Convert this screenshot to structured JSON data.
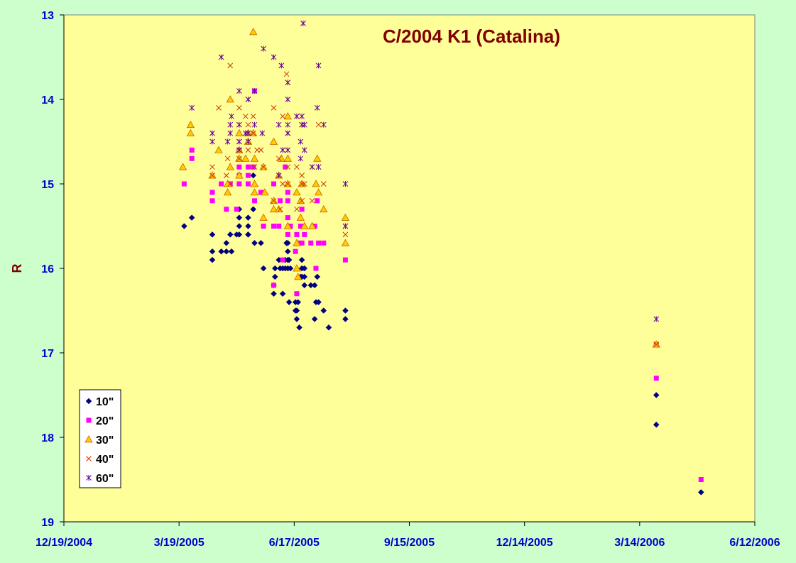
{
  "chart_data": {
    "type": "scatter",
    "title": "C/2004 K1 (Catalina)",
    "xlabel": "",
    "ylabel": "R",
    "x_type": "date",
    "xlim": [
      "12/19/2004",
      "6/12/2006"
    ],
    "x_ticks": [
      "12/19/2004",
      "3/19/2005",
      "6/17/2005",
      "9/15/2005",
      "12/14/2005",
      "3/14/2006",
      "6/12/2006"
    ],
    "ylim": [
      13,
      19
    ],
    "y_reversed": true,
    "y_ticks": [
      "13",
      "14",
      "15",
      "16",
      "17",
      "18",
      "19"
    ],
    "grid": false,
    "legend_position": "bottom-left",
    "plot_background": "#ffff99",
    "page_background": "#ccffcc",
    "series": [
      {
        "name": "10\"",
        "marker": "diamond",
        "color": "#000080",
        "points": [
          [
            "3/23/2005",
            15.5
          ],
          [
            "3/29/2005",
            15.4
          ],
          [
            "4/14/2005",
            15.6
          ],
          [
            "4/14/2005",
            15.8
          ],
          [
            "4/14/2005",
            15.9
          ],
          [
            "4/21/2005",
            15.8
          ],
          [
            "4/25/2005",
            15.7
          ],
          [
            "4/25/2005",
            15.8
          ],
          [
            "4/28/2005",
            15.6
          ],
          [
            "4/29/2005",
            15.8
          ],
          [
            "5/3/2005",
            15.6
          ],
          [
            "5/5/2005",
            15.4
          ],
          [
            "5/5/2005",
            15.5
          ],
          [
            "5/5/2005",
            15.6
          ],
          [
            "5/5/2005",
            15.3
          ],
          [
            "5/12/2005",
            15.4
          ],
          [
            "5/12/2005",
            15.5
          ],
          [
            "5/12/2005",
            15.6
          ],
          [
            "5/12/2005",
            15.6
          ],
          [
            "5/16/2005",
            15.3
          ],
          [
            "5/16/2005",
            14.9
          ],
          [
            "5/17/2005",
            15.7
          ],
          [
            "5/22/2005",
            15.7
          ],
          [
            "5/24/2005",
            16.0
          ],
          [
            "6/1/2005",
            16.2
          ],
          [
            "6/1/2005",
            16.3
          ],
          [
            "6/2/2005",
            16.1
          ],
          [
            "6/2/2005",
            16.0
          ],
          [
            "6/5/2005",
            15.9
          ],
          [
            "6/6/2005",
            16.0
          ],
          [
            "6/8/2005",
            16.0
          ],
          [
            "6/8/2005",
            16.3
          ],
          [
            "6/10/2005",
            15.9
          ],
          [
            "6/10/2005",
            16.0
          ],
          [
            "6/11/2005",
            15.7
          ],
          [
            "6/12/2005",
            15.7
          ],
          [
            "6/12/2005",
            15.8
          ],
          [
            "6/12/2005",
            15.9
          ],
          [
            "6/12/2005",
            16.0
          ],
          [
            "6/13/2005",
            16.4
          ],
          [
            "6/13/2005",
            15.9
          ],
          [
            "6/14/2005",
            16.0
          ],
          [
            "6/18/2005",
            16.4
          ],
          [
            "6/18/2005",
            16.5
          ],
          [
            "6/19/2005",
            16.5
          ],
          [
            "6/19/2005",
            16.6
          ],
          [
            "6/20/2005",
            16.4
          ],
          [
            "6/21/2005",
            16.7
          ],
          [
            "6/22/2005",
            16.1
          ],
          [
            "6/23/2005",
            16.0
          ],
          [
            "6/23/2005",
            15.9
          ],
          [
            "6/23/2005",
            16.1
          ],
          [
            "6/25/2005",
            16.2
          ],
          [
            "6/25/2005",
            16.0
          ],
          [
            "6/25/2005",
            16.1
          ],
          [
            "6/30/2005",
            16.2
          ],
          [
            "7/3/2005",
            16.6
          ],
          [
            "7/3/2005",
            16.2
          ],
          [
            "7/4/2005",
            16.4
          ],
          [
            "7/5/2005",
            16.1
          ],
          [
            "7/6/2005",
            16.4
          ],
          [
            "7/10/2005",
            16.5
          ],
          [
            "7/14/2005",
            16.7
          ],
          [
            "7/27/2005",
            16.5
          ],
          [
            "7/27/2005",
            16.6
          ],
          [
            "3/27/2006",
            17.5
          ],
          [
            "3/27/2006",
            17.85
          ],
          [
            "5/1/2006",
            18.65
          ]
        ]
      },
      {
        "name": "20\"",
        "marker": "square",
        "color": "#ff00ff",
        "points": [
          [
            "3/23/2005",
            15.0
          ],
          [
            "3/29/2005",
            14.6
          ],
          [
            "3/29/2005",
            14.7
          ],
          [
            "4/14/2005",
            15.1
          ],
          [
            "4/14/2005",
            15.2
          ],
          [
            "4/21/2005",
            15.0
          ],
          [
            "4/25/2005",
            15.3
          ],
          [
            "4/28/2005",
            15.0
          ],
          [
            "5/3/2005",
            15.3
          ],
          [
            "5/5/2005",
            14.6
          ],
          [
            "5/5/2005",
            14.9
          ],
          [
            "5/5/2005",
            15.0
          ],
          [
            "5/5/2005",
            14.8
          ],
          [
            "5/12/2005",
            14.8
          ],
          [
            "5/12/2005",
            14.9
          ],
          [
            "5/12/2005",
            15.0
          ],
          [
            "5/16/2005",
            14.8
          ],
          [
            "5/17/2005",
            13.9
          ],
          [
            "5/17/2005",
            15.2
          ],
          [
            "5/22/2005",
            15.1
          ],
          [
            "5/24/2005",
            15.5
          ],
          [
            "6/1/2005",
            15.0
          ],
          [
            "6/1/2005",
            15.5
          ],
          [
            "6/1/2005",
            16.2
          ],
          [
            "6/5/2005",
            15.5
          ],
          [
            "6/6/2005",
            15.2
          ],
          [
            "6/8/2005",
            15.9
          ],
          [
            "6/10/2005",
            14.8
          ],
          [
            "6/12/2005",
            15.1
          ],
          [
            "6/12/2005",
            15.2
          ],
          [
            "6/12/2005",
            15.4
          ],
          [
            "6/12/2005",
            15.6
          ],
          [
            "6/14/2005",
            15.5
          ],
          [
            "6/18/2005",
            15.8
          ],
          [
            "6/19/2005",
            16.3
          ],
          [
            "6/19/2005",
            15.6
          ],
          [
            "6/20/2005",
            15.7
          ],
          [
            "6/22/2005",
            15.5
          ],
          [
            "6/23/2005",
            15.7
          ],
          [
            "6/23/2005",
            15.3
          ],
          [
            "6/25/2005",
            15.6
          ],
          [
            "6/30/2005",
            15.7
          ],
          [
            "7/3/2005",
            15.5
          ],
          [
            "7/4/2005",
            16.0
          ],
          [
            "7/5/2005",
            15.2
          ],
          [
            "7/6/2005",
            15.7
          ],
          [
            "7/10/2005",
            15.7
          ],
          [
            "7/27/2005",
            15.9
          ],
          [
            "3/27/2006",
            16.9
          ],
          [
            "3/27/2006",
            17.3
          ],
          [
            "5/1/2006",
            18.5
          ]
        ]
      },
      {
        "name": "30\"",
        "marker": "triangle",
        "color": "#ffcc00",
        "points": [
          [
            "3/22/2005",
            14.8
          ],
          [
            "3/28/2005",
            14.3
          ],
          [
            "3/28/2005",
            14.4
          ],
          [
            "4/14/2005",
            14.9
          ],
          [
            "4/19/2005",
            14.6
          ],
          [
            "4/26/2005",
            15.0
          ],
          [
            "4/26/2005",
            15.1
          ],
          [
            "4/28/2005",
            14.0
          ],
          [
            "4/28/2005",
            14.8
          ],
          [
            "5/5/2005",
            14.4
          ],
          [
            "5/5/2005",
            14.6
          ],
          [
            "5/5/2005",
            14.7
          ],
          [
            "5/5/2005",
            14.9
          ],
          [
            "5/10/2005",
            14.7
          ],
          [
            "5/12/2005",
            14.4
          ],
          [
            "5/12/2005",
            14.5
          ],
          [
            "5/16/2005",
            13.2
          ],
          [
            "5/16/2005",
            14.4
          ],
          [
            "5/17/2005",
            14.7
          ],
          [
            "5/17/2005",
            15.0
          ],
          [
            "5/17/2005",
            15.1
          ],
          [
            "5/24/2005",
            14.8
          ],
          [
            "5/24/2005",
            15.4
          ],
          [
            "5/25/2005",
            15.1
          ],
          [
            "6/1/2005",
            14.5
          ],
          [
            "6/1/2005",
            15.2
          ],
          [
            "6/1/2005",
            15.3
          ],
          [
            "6/5/2005",
            14.9
          ],
          [
            "6/5/2005",
            15.3
          ],
          [
            "6/7/2005",
            14.7
          ],
          [
            "6/12/2005",
            14.2
          ],
          [
            "6/12/2005",
            15.0
          ],
          [
            "6/12/2005",
            14.7
          ],
          [
            "6/12/2005",
            15.5
          ],
          [
            "6/19/2005",
            15.1
          ],
          [
            "6/19/2005",
            15.7
          ],
          [
            "6/19/2005",
            16.0
          ],
          [
            "6/20/2005",
            16.1
          ],
          [
            "6/22/2005",
            15.2
          ],
          [
            "6/22/2005",
            15.4
          ],
          [
            "6/23/2005",
            15.0
          ],
          [
            "6/25/2005",
            15.5
          ],
          [
            "7/1/2005",
            15.5
          ],
          [
            "7/4/2005",
            15.0
          ],
          [
            "7/5/2005",
            14.7
          ],
          [
            "7/6/2005",
            15.1
          ],
          [
            "7/10/2005",
            15.3
          ],
          [
            "7/27/2005",
            15.4
          ],
          [
            "7/27/2005",
            15.7
          ],
          [
            "3/27/2006",
            16.9
          ]
        ]
      },
      {
        "name": "40\"",
        "marker": "x",
        "color": "#cc3300",
        "points": [
          [
            "4/14/2005",
            14.8
          ],
          [
            "4/14/2005",
            14.9
          ],
          [
            "4/19/2005",
            14.1
          ],
          [
            "4/25/2005",
            14.9
          ],
          [
            "4/26/2005",
            14.7
          ],
          [
            "4/28/2005",
            13.6
          ],
          [
            "4/28/2005",
            15.0
          ],
          [
            "5/5/2005",
            14.1
          ],
          [
            "5/5/2005",
            14.3
          ],
          [
            "5/5/2005",
            14.5
          ],
          [
            "5/5/2005",
            14.7
          ],
          [
            "5/10/2005",
            14.2
          ],
          [
            "5/12/2005",
            14.0
          ],
          [
            "5/12/2005",
            14.3
          ],
          [
            "5/12/2005",
            14.6
          ],
          [
            "5/16/2005",
            14.4
          ],
          [
            "5/16/2005",
            14.2
          ],
          [
            "5/17/2005",
            14.8
          ],
          [
            "5/19/2005",
            14.6
          ],
          [
            "5/22/2005",
            14.6
          ],
          [
            "5/24/2005",
            14.8
          ],
          [
            "6/1/2005",
            14.1
          ],
          [
            "6/1/2005",
            15.2
          ],
          [
            "6/5/2005",
            14.7
          ],
          [
            "6/6/2005",
            15.3
          ],
          [
            "6/8/2005",
            14.2
          ],
          [
            "6/8/2005",
            15.0
          ],
          [
            "6/11/2005",
            13.7
          ],
          [
            "6/12/2005",
            13.8
          ],
          [
            "6/12/2005",
            14.4
          ],
          [
            "6/12/2005",
            14.8
          ],
          [
            "6/12/2005",
            15.0
          ],
          [
            "6/19/2005",
            14.2
          ],
          [
            "6/19/2005",
            14.8
          ],
          [
            "6/19/2005",
            15.3
          ],
          [
            "6/23/2005",
            14.3
          ],
          [
            "6/23/2005",
            14.9
          ],
          [
            "6/23/2005",
            15.0
          ],
          [
            "6/23/2005",
            15.2
          ],
          [
            "6/25/2005",
            15.0
          ],
          [
            "6/25/2005",
            14.3
          ],
          [
            "7/1/2005",
            14.8
          ],
          [
            "7/1/2005",
            15.2
          ],
          [
            "7/6/2005",
            14.8
          ],
          [
            "7/6/2005",
            14.3
          ],
          [
            "7/10/2005",
            15.0
          ],
          [
            "7/27/2005",
            15.5
          ],
          [
            "7/27/2005",
            15.6
          ],
          [
            "3/27/2006",
            16.9
          ]
        ]
      },
      {
        "name": "60\"",
        "marker": "star",
        "color": "#660099",
        "points": [
          [
            "3/29/2005",
            14.1
          ],
          [
            "4/14/2005",
            14.4
          ],
          [
            "4/14/2005",
            14.5
          ],
          [
            "4/21/2005",
            13.5
          ],
          [
            "4/26/2005",
            14.5
          ],
          [
            "4/28/2005",
            14.4
          ],
          [
            "4/28/2005",
            14.3
          ],
          [
            "4/29/2005",
            14.2
          ],
          [
            "5/5/2005",
            13.9
          ],
          [
            "5/5/2005",
            14.3
          ],
          [
            "5/5/2005",
            14.5
          ],
          [
            "5/5/2005",
            14.6
          ],
          [
            "5/10/2005",
            14.4
          ],
          [
            "5/12/2005",
            14.0
          ],
          [
            "5/12/2005",
            14.4
          ],
          [
            "5/12/2005",
            14.5
          ],
          [
            "5/17/2005",
            13.9
          ],
          [
            "5/17/2005",
            14.3
          ],
          [
            "5/23/2005",
            14.4
          ],
          [
            "5/24/2005",
            13.4
          ],
          [
            "6/1/2005",
            13.5
          ],
          [
            "6/5/2005",
            14.3
          ],
          [
            "6/5/2005",
            14.9
          ],
          [
            "6/7/2005",
            13.6
          ],
          [
            "6/8/2005",
            14.6
          ],
          [
            "6/12/2005",
            14.4
          ],
          [
            "6/12/2005",
            14.6
          ],
          [
            "6/12/2005",
            13.8
          ],
          [
            "6/12/2005",
            14.0
          ],
          [
            "6/12/2005",
            14.3
          ],
          [
            "6/19/2005",
            14.2
          ],
          [
            "6/22/2005",
            14.5
          ],
          [
            "6/22/2005",
            14.7
          ],
          [
            "6/23/2005",
            14.2
          ],
          [
            "6/23/2005",
            14.3
          ],
          [
            "6/24/2005",
            13.1
          ],
          [
            "6/25/2005",
            14.6
          ],
          [
            "6/25/2005",
            14.3
          ],
          [
            "7/1/2005",
            14.8
          ],
          [
            "7/5/2005",
            14.1
          ],
          [
            "7/6/2005",
            13.6
          ],
          [
            "7/6/2005",
            14.8
          ],
          [
            "7/10/2005",
            14.3
          ],
          [
            "7/27/2005",
            15.0
          ],
          [
            "7/27/2005",
            15.5
          ],
          [
            "3/27/2006",
            16.6
          ]
        ]
      }
    ]
  }
}
